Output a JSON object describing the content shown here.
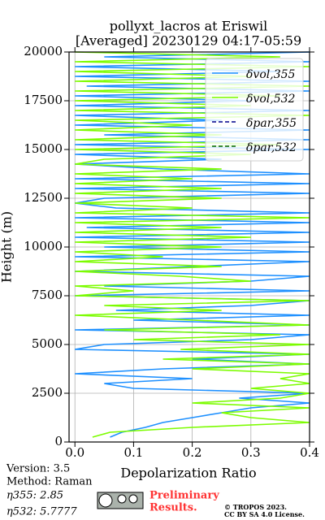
{
  "chart_data": {
    "type": "profile",
    "title": "pollyxt_lacros at Eriswil",
    "subtitle": "[Averaged] 20230129 04:17-05:59",
    "x_label": "Depolarization Ratio",
    "y_label": "Height (m)",
    "xlim": [
      -0.01,
      0.4
    ],
    "xticks": [
      {
        "value": 0,
        "label": "0.0"
      },
      0.1,
      0.2,
      0.3,
      0.4
    ],
    "ylim": [
      0,
      20000
    ],
    "yticks": [
      0,
      2500,
      5000,
      7500,
      10000,
      12500,
      15000,
      17500,
      20000
    ],
    "grid": true,
    "legend_position": "upper right",
    "y": [
      0,
      250,
      500,
      750,
      1000,
      1250,
      1500,
      1750,
      2000,
      2250,
      2500,
      2750,
      3000,
      3250,
      3500,
      3750,
      4000,
      4250,
      4500,
      4750,
      5000,
      5250,
      5500,
      5750,
      6000,
      6250,
      6500,
      6750,
      7000,
      7250,
      7500,
      7750,
      8000,
      8250,
      8500,
      8750,
      9000,
      9250,
      9500,
      9750,
      10000,
      10250,
      10500,
      10750,
      11000,
      11250,
      11500,
      11750,
      12000,
      12250,
      12500,
      12750,
      13000,
      13250,
      13500,
      13750,
      14000,
      14250,
      14500,
      14750,
      15000,
      15250,
      15500,
      15750,
      16000,
      16250,
      16500,
      16750,
      17000,
      17250,
      17500,
      17750,
      18000,
      18250,
      18500,
      18750,
      19000,
      19250,
      19500,
      19750,
      20000
    ],
    "series": [
      {
        "name": "δvol,355",
        "color": "#1e90ff",
        "dash": "solid",
        "values": [
          null,
          0.06,
          0.08,
          0.12,
          0.15,
          0.2,
          0.25,
          0.3,
          0.4,
          0.28,
          0.4,
          0.1,
          0.05,
          0.2,
          0,
          0.15,
          0.4,
          0.2,
          0.4,
          0,
          0.05,
          0.3,
          0.4,
          0,
          0.4,
          0.1,
          0.4,
          0.07,
          0.3,
          0.4,
          0,
          0.4,
          0.05,
          0.3,
          0.4,
          0,
          0.2,
          0.4,
          0,
          0.4,
          0.05,
          0.4,
          0,
          0.4,
          0.02,
          0.4,
          0,
          0.4,
          0.07,
          0,
          0.05,
          0.4,
          0,
          0.4,
          0,
          0.4,
          0.15,
          0,
          0.25,
          0,
          0.4,
          0,
          0.4,
          0.05,
          0.4,
          0,
          0.25,
          0,
          0.4,
          0,
          0.3,
          0,
          0.4,
          0.02,
          0.4,
          0,
          0.35,
          0,
          0.4,
          0.05,
          0.4
        ]
      },
      {
        "name": "δvol,532",
        "color": "#7cfc00",
        "dash": "solid",
        "values": [
          null,
          0.03,
          0.06,
          0.2,
          0.4,
          0.3,
          0.25,
          0.4,
          0.2,
          0.35,
          0.4,
          0.3,
          0.4,
          0.35,
          0.4,
          0.2,
          0.4,
          0.15,
          0.4,
          0.18,
          0.4,
          0.1,
          0.35,
          0.05,
          0.4,
          0.2,
          0,
          0.25,
          0.05,
          0.4,
          0,
          0.1,
          0,
          0.3,
          0.18,
          0,
          0.25,
          0,
          0.15,
          0,
          0.25,
          0,
          0.3,
          0,
          0.25,
          0,
          0.4,
          0,
          0.2,
          0,
          0.25,
          0,
          0.25,
          0,
          0.2,
          0,
          0.25,
          0,
          0.05,
          0.3,
          0,
          0.35,
          0,
          0.25,
          0,
          0.2,
          0,
          0.4,
          0,
          0.3,
          0,
          0.35,
          0,
          0.4,
          0,
          0.3,
          0,
          0.4,
          0,
          0.35,
          0
        ]
      },
      {
        "name": "δpar,355",
        "color": "#00008b",
        "dash": "dashed",
        "values": [
          null,
          null,
          null,
          null,
          null,
          null,
          null,
          null,
          null,
          null,
          null,
          null,
          null,
          null,
          null,
          null,
          null,
          null,
          null,
          null,
          null,
          null,
          null,
          null,
          null,
          null,
          null,
          null,
          null,
          null,
          null,
          null,
          null,
          null,
          null,
          null,
          null,
          null,
          null,
          null,
          null,
          null,
          null,
          null,
          null,
          null,
          null,
          null,
          null,
          null,
          null,
          null,
          null,
          null,
          null,
          null,
          null,
          null,
          null,
          null,
          null,
          null,
          null,
          null,
          null,
          null,
          null,
          null,
          null,
          null,
          null,
          null,
          null,
          null,
          null,
          null,
          null,
          null,
          null,
          null,
          null
        ]
      },
      {
        "name": "δpar,532",
        "color": "#006400",
        "dash": "dashed",
        "values": [
          null,
          null,
          null,
          null,
          null,
          null,
          null,
          null,
          null,
          null,
          null,
          null,
          null,
          null,
          null,
          null,
          null,
          null,
          null,
          null,
          null,
          null,
          null,
          null,
          null,
          null,
          null,
          null,
          null,
          null,
          null,
          null,
          null,
          null,
          null,
          null,
          null,
          null,
          null,
          null,
          null,
          null,
          null,
          null,
          null,
          null,
          null,
          null,
          null,
          null,
          null,
          null,
          null,
          null,
          null,
          null,
          null,
          null,
          null,
          null,
          null,
          null,
          null,
          null,
          null,
          null,
          null,
          null,
          null,
          null,
          null,
          null,
          null,
          null,
          null,
          null,
          null,
          null,
          null,
          null,
          null
        ]
      }
    ],
    "footer": {
      "version": "Version: 3.5",
      "method": "Method: Raman",
      "eta355": "η355:   2.85",
      "eta532": "η532: 5.7777",
      "preliminary": "Preliminary",
      "results": "Results.",
      "copyright": "© TROPOS 2023.",
      "license": "CC BY SA 4.0 License."
    }
  }
}
